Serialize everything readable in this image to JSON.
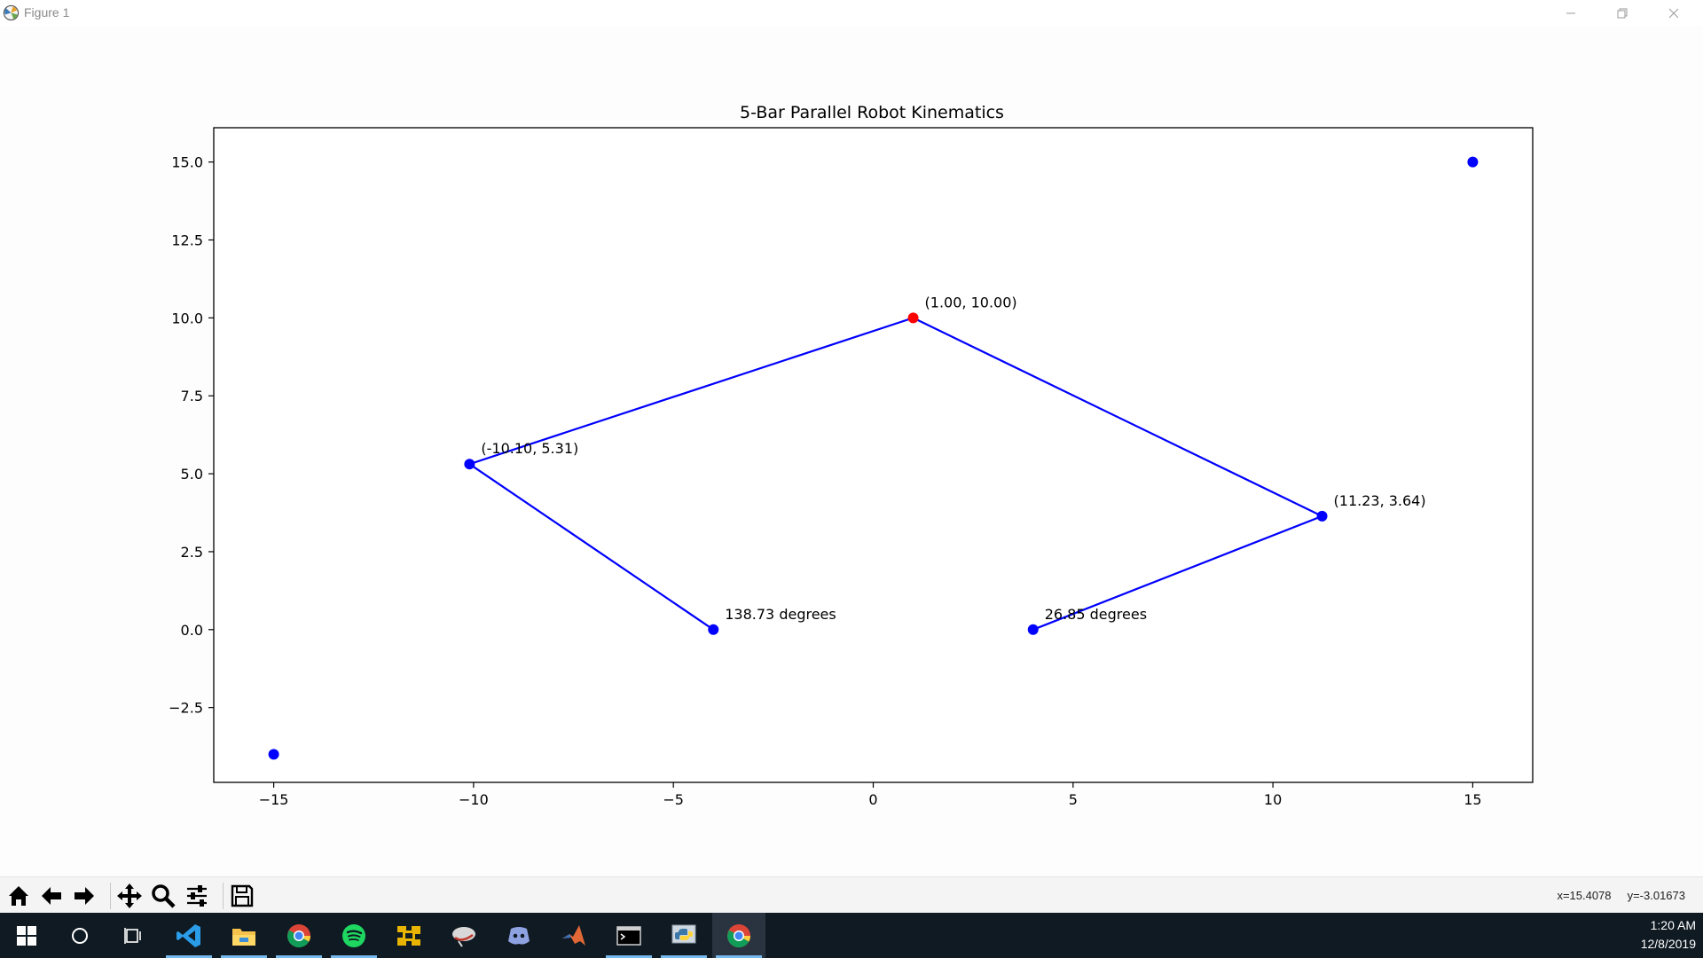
{
  "window": {
    "title": "Figure 1",
    "minimize_icon": "minimize-icon",
    "restore_icon": "restore-icon",
    "close_icon": "close-icon"
  },
  "chart_data": {
    "type": "scatter",
    "title": "5-Bar Parallel Robot Kinematics",
    "xlabel": "",
    "ylabel": "",
    "xlim": [
      -16.5,
      16.5
    ],
    "ylim": [
      -4.9,
      16.1
    ],
    "x_ticks": [
      -15,
      -10,
      -5,
      0,
      5,
      10,
      15
    ],
    "x_tick_labels": [
      "−15",
      "−10",
      "−5",
      "0",
      "5",
      "10",
      "15"
    ],
    "y_ticks": [
      -2.5,
      0.0,
      2.5,
      5.0,
      7.5,
      10.0,
      12.5,
      15.0
    ],
    "y_tick_labels": [
      "−2.5",
      "0.0",
      "2.5",
      "5.0",
      "7.5",
      "10.0",
      "12.5",
      "15.0"
    ],
    "grid": false,
    "link_color": "#0000ff",
    "end_effector_color": "#ff0000",
    "links": [
      {
        "points": [
          [
            -4,
            0
          ],
          [
            -10.1,
            5.31
          ],
          [
            1.0,
            10.0
          ]
        ]
      },
      {
        "points": [
          [
            4,
            0
          ],
          [
            11.23,
            3.64
          ],
          [
            1.0,
            10.0
          ]
        ]
      }
    ],
    "points": [
      {
        "x": -4,
        "y": 0,
        "color": "#0000ff",
        "label": "138.73 degrees"
      },
      {
        "x": 4,
        "y": 0,
        "color": "#0000ff",
        "label": "26.85 degrees"
      },
      {
        "x": -10.1,
        "y": 5.31,
        "color": "#0000ff",
        "label": "(-10.10, 5.31)"
      },
      {
        "x": 11.23,
        "y": 3.64,
        "color": "#0000ff",
        "label": "(11.23, 3.64)"
      },
      {
        "x": 1.0,
        "y": 10.0,
        "color": "#ff0000",
        "label": "(1.00, 10.00)"
      },
      {
        "x": 15,
        "y": 15,
        "color": "#0000ff",
        "label": ""
      },
      {
        "x": -15,
        "y": -4,
        "color": "#0000ff",
        "label": ""
      }
    ]
  },
  "toolbar": {
    "tools": [
      "home-icon",
      "back-arrow-icon",
      "forward-arrow-icon",
      "pan-icon",
      "zoom-icon",
      "configure-subplots-icon",
      "save-icon"
    ],
    "coordinates": "x=15.4078     y=-3.01673"
  },
  "taskbar": {
    "items": [
      "windows-start-icon",
      "cortana-search-icon",
      "task-view-icon",
      "vscode-icon",
      "file-explorer-icon",
      "chrome-icon",
      "spotify-icon",
      "app-icon",
      "cloud-app-icon",
      "discord-icon",
      "matlab-icon",
      "terminal-icon",
      "python-icon",
      "chrome-icon"
    ],
    "time": "1:20 AM",
    "date": "12/8/2019"
  }
}
